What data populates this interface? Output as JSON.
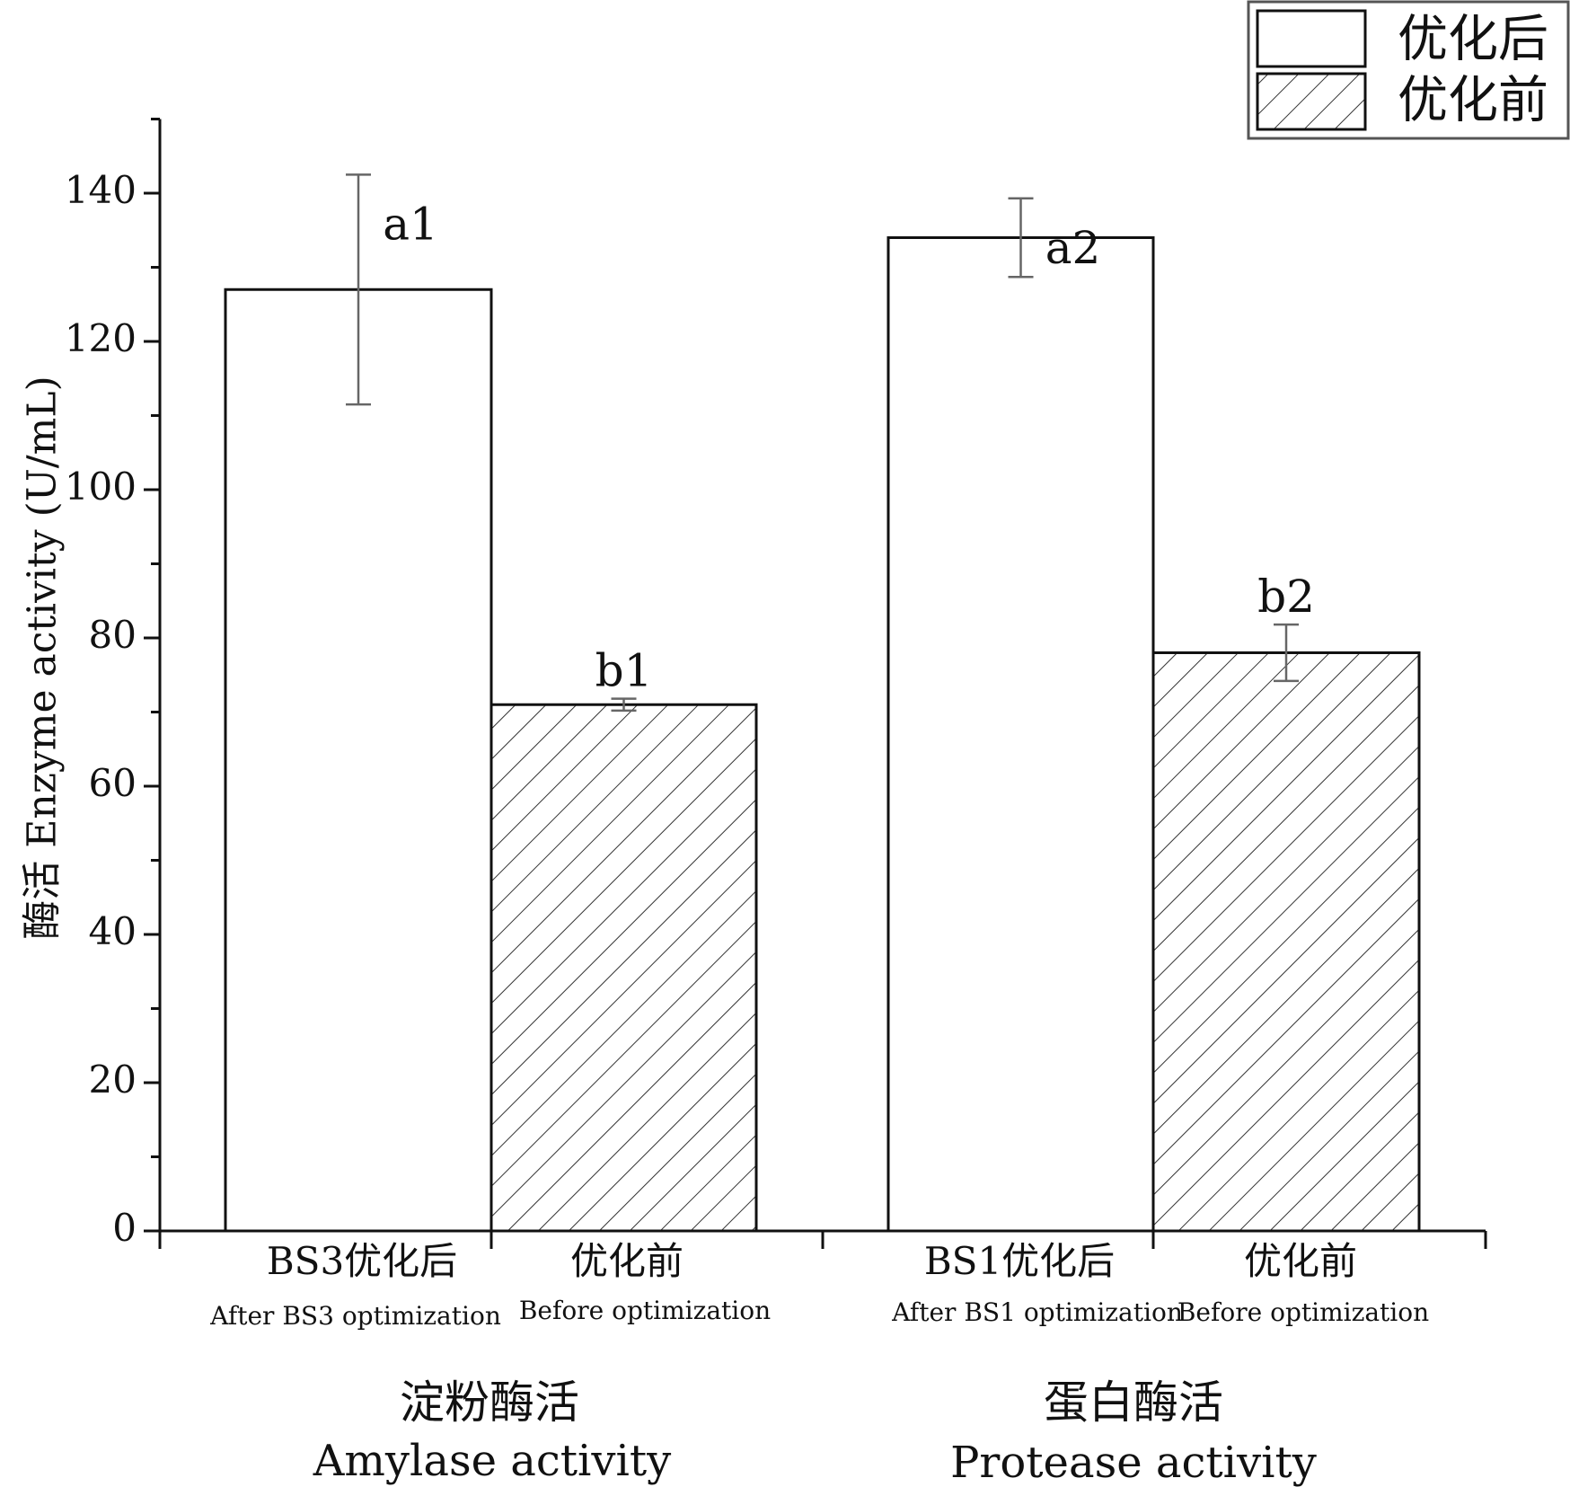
{
  "chart_data": {
    "type": "bar",
    "title": "",
    "ylabel": "酶活 Enzyme activity (U/mL)",
    "xlabel": "",
    "ylim": [
      0,
      150
    ],
    "yticks": [
      0,
      20,
      40,
      60,
      80,
      100,
      120,
      140
    ],
    "minor_tick_step": 10,
    "grid": false,
    "legend": {
      "placement": "top-right",
      "entries": [
        {
          "label": "优化后",
          "pattern": "solid-white"
        },
        {
          "label": "优化前",
          "pattern": "diagonal-hatch"
        }
      ]
    },
    "groups": [
      {
        "label_cn": "淀粉酶活",
        "label_en": "Amylase activity",
        "bars": [
          {
            "label_cn": "BS3优化后",
            "label_en": "After BS3 optimization",
            "value": 127,
            "error": 15.5,
            "sig": "a1",
            "pattern": "solid-white"
          },
          {
            "label_cn": "优化前",
            "label_en": "Before optimization",
            "value": 71,
            "error": 0.8,
            "sig": "b1",
            "pattern": "diagonal-hatch"
          }
        ]
      },
      {
        "label_cn": "蛋白酶活",
        "label_en": "Protease activity",
        "bars": [
          {
            "label_cn": "BS1优化后",
            "label_en": "After BS1 optimization",
            "value": 134,
            "error": 5.3,
            "sig": "a2",
            "pattern": "solid-white"
          },
          {
            "label_cn": "优化前",
            "label_en": "Before optimization",
            "value": 78,
            "error": 3.8,
            "sig": "b2",
            "pattern": "diagonal-hatch"
          }
        ]
      }
    ]
  },
  "colors": {
    "axis": "#111111",
    "bar_fill": "#ffffff",
    "hatch": "#333333",
    "error_bar": "#666666"
  }
}
